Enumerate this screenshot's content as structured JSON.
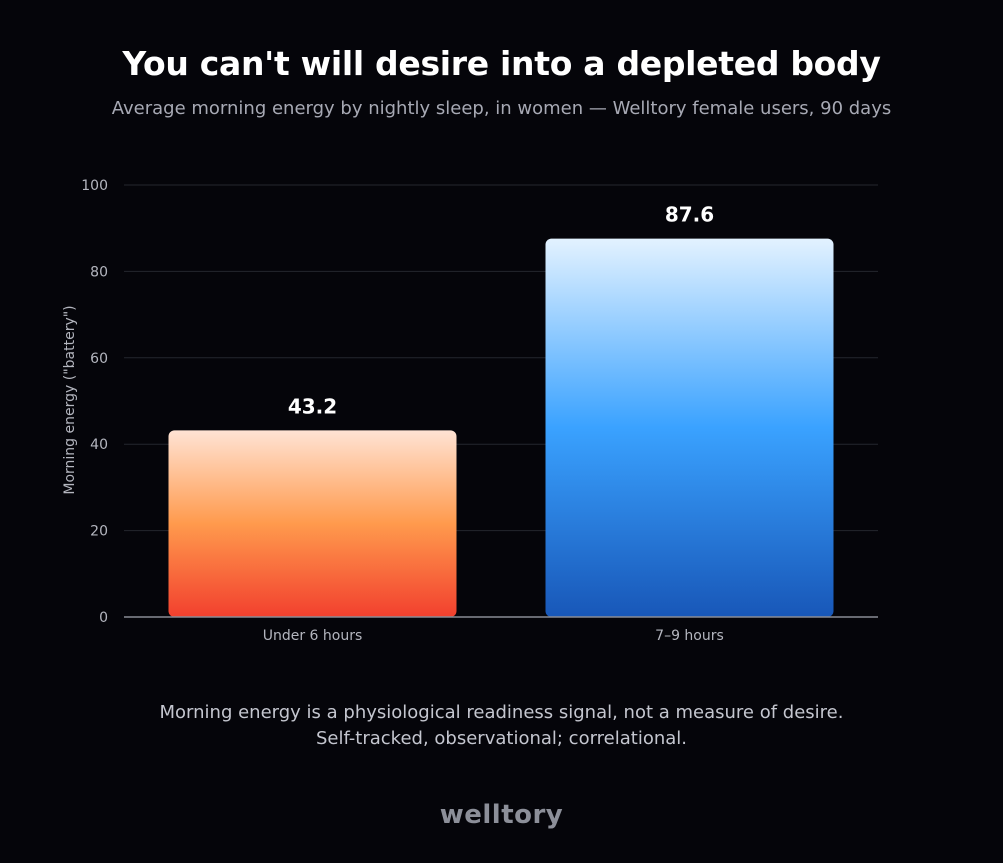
{
  "title": "You can't will desire into a depleted body",
  "subtitle": "Average morning energy by nightly sleep, in women — Welltory female users, 90 days",
  "footnote": {
    "line1": "Morning energy is a physiological readiness signal, not a measure of desire.",
    "line2": "Self-tracked, observational; correlational."
  },
  "logo": "welltory",
  "chart_data": {
    "type": "bar",
    "categories": [
      "Under 6 hours",
      "7–9 hours"
    ],
    "values": [
      43.2,
      87.6
    ],
    "value_labels": [
      "43.2",
      "87.6"
    ],
    "title": "You can't will desire into a depleted body",
    "subtitle": "Average morning energy by nightly sleep, in women — Welltory female users, 90 days",
    "xlabel": "",
    "ylabel": "Morning energy (\"battery\")",
    "ylim": [
      0,
      100
    ],
    "yticks": [
      0,
      20,
      40,
      60,
      80,
      100
    ],
    "grid": true,
    "legend": "none",
    "colors": {
      "bar_1": [
        "#ffe3d4",
        "#ff9a4d",
        "#f2402e"
      ],
      "bar_2": [
        "#e3f2ff",
        "#3aa2ff",
        "#1857b8"
      ]
    }
  }
}
